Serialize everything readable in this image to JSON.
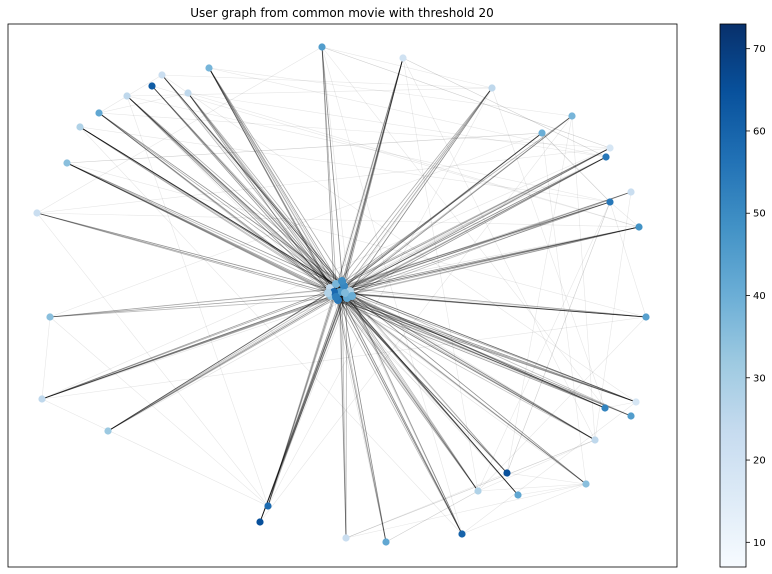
{
  "chart_data": {
    "type": "network",
    "title": "User graph from common movie with threshold 20",
    "colormap": "Blues",
    "colorbar": {
      "min": 7,
      "max": 73,
      "ticks": [
        10,
        20,
        30,
        40,
        50,
        60,
        70
      ]
    },
    "edge_color": "#000000",
    "hub_nodes_value_range": [
      25,
      60
    ],
    "outer_nodes": [
      {
        "id": 1,
        "value": 45
      },
      {
        "id": 2,
        "value": 20
      },
      {
        "id": 3,
        "value": 25
      },
      {
        "id": 4,
        "value": 38
      },
      {
        "id": 5,
        "value": 40
      },
      {
        "id": 6,
        "value": 18
      },
      {
        "id": 7,
        "value": 55
      },
      {
        "id": 8,
        "value": 22
      },
      {
        "id": 9,
        "value": 55
      },
      {
        "id": 10,
        "value": 48
      },
      {
        "id": 11,
        "value": 44
      },
      {
        "id": 12,
        "value": 18
      },
      {
        "id": 13,
        "value": 52
      },
      {
        "id": 14,
        "value": 45
      },
      {
        "id": 15,
        "value": 25
      },
      {
        "id": 16,
        "value": 35
      },
      {
        "id": 17,
        "value": 65
      },
      {
        "id": 18,
        "value": 28
      },
      {
        "id": 19,
        "value": 42
      },
      {
        "id": 20,
        "value": 60
      },
      {
        "id": 21,
        "value": 42
      },
      {
        "id": 22,
        "value": 22
      },
      {
        "id": 23,
        "value": 65
      },
      {
        "id": 24,
        "value": 58
      },
      {
        "id": 25,
        "value": 25
      },
      {
        "id": 26,
        "value": 32
      },
      {
        "id": 27,
        "value": 35
      },
      {
        "id": 28,
        "value": 22
      },
      {
        "id": 29,
        "value": 35
      },
      {
        "id": 30,
        "value": 28
      },
      {
        "id": 31,
        "value": 42
      },
      {
        "id": 32,
        "value": 25
      },
      {
        "id": 33,
        "value": 62
      },
      {
        "id": 34,
        "value": 22
      },
      {
        "id": 35,
        "value": 25
      },
      {
        "id": 36,
        "value": 38
      }
    ]
  }
}
